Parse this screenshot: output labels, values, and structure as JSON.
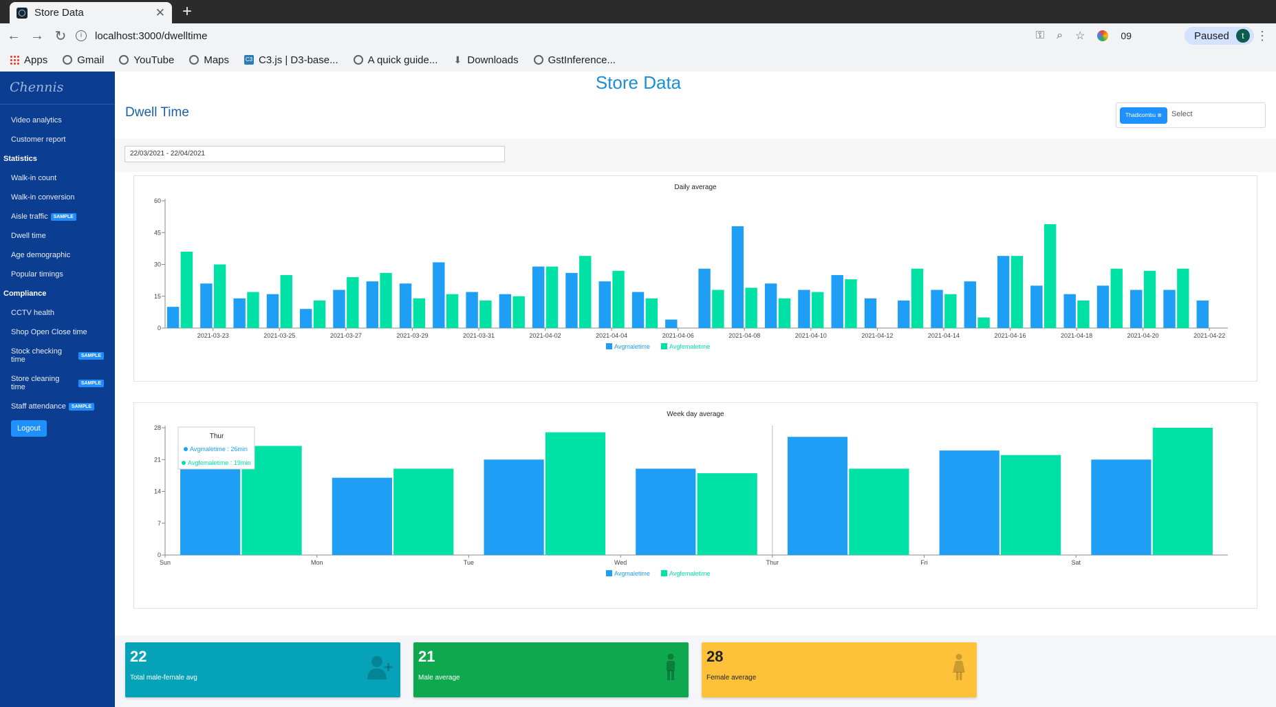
{
  "browser": {
    "tab_title": "Store Data",
    "url": "localhost:3000/dwelltime",
    "paused_label": "Paused",
    "avatar_letter": "t",
    "extension_badge": "09",
    "bookmarks": [
      "Apps",
      "Gmail",
      "YouTube",
      "Maps",
      "C3.js | D3-base...",
      "A quick guide...",
      "Downloads",
      "GstInference..."
    ]
  },
  "sidebar": {
    "logo": "Chennis",
    "top_items": [
      "Video analytics",
      "Customer report"
    ],
    "sections": [
      {
        "title": "Statistics",
        "items": [
          {
            "label": "Walk-in count",
            "badge": ""
          },
          {
            "label": "Walk-in conversion",
            "badge": ""
          },
          {
            "label": "Aisle traffic",
            "badge": "SAMPLE"
          },
          {
            "label": "Dwell time",
            "badge": ""
          },
          {
            "label": "Age demographic",
            "badge": ""
          },
          {
            "label": "Popular timings",
            "badge": ""
          }
        ]
      },
      {
        "title": "Compliance",
        "items": [
          {
            "label": "CCTV health",
            "badge": ""
          },
          {
            "label": "Shop Open Close time",
            "badge": ""
          },
          {
            "label": "Stock checking time",
            "badge": "SAMPLE"
          },
          {
            "label": "Store cleaning time",
            "badge": "SAMPLE"
          },
          {
            "label": "Staff attendance",
            "badge": "SAMPLE"
          }
        ]
      }
    ],
    "logout_label": "Logout"
  },
  "header": {
    "title": "Store Data"
  },
  "page": {
    "title": "Dwell Time",
    "store_chip": "Thadicombu ⊗",
    "select_placeholder": "Select",
    "date_range": "22/03/2021 - 22/04/2021"
  },
  "colors": {
    "male": "#1e9ef4",
    "female": "#00e2a5",
    "sidebar": "#0b3d91"
  },
  "chart_data": [
    {
      "type": "bar",
      "title": "Daily average",
      "ylim": [
        0,
        60
      ],
      "yticks": [
        0,
        15,
        30,
        45,
        60
      ],
      "x_tick_labels": [
        "2021-03-23",
        "2021-03-25",
        "2021-03-27",
        "2021-03-29",
        "2021-03-31",
        "2021-04-02",
        "2021-04-04",
        "2021-04-06",
        "2021-04-08",
        "2021-04-10",
        "2021-04-12",
        "2021-04-14",
        "2021-04-16",
        "2021-04-18",
        "2021-04-20",
        "2021-04-22"
      ],
      "categories": [
        "2021-03-22",
        "2021-03-23",
        "2021-03-24",
        "2021-03-25",
        "2021-03-26",
        "2021-03-27",
        "2021-03-28",
        "2021-03-29",
        "2021-03-30",
        "2021-03-31",
        "2021-04-01",
        "2021-04-02",
        "2021-04-03",
        "2021-04-04",
        "2021-04-05",
        "2021-04-06",
        "2021-04-07",
        "2021-04-08",
        "2021-04-09",
        "2021-04-10",
        "2021-04-11",
        "2021-04-12",
        "2021-04-13",
        "2021-04-14",
        "2021-04-15",
        "2021-04-16",
        "2021-04-17",
        "2021-04-18",
        "2021-04-19",
        "2021-04-20",
        "2021-04-21",
        "2021-04-22"
      ],
      "series": [
        {
          "name": "Avgmaletime",
          "color": "#1e9ef4",
          "values": [
            10,
            21,
            14,
            16,
            9,
            18,
            22,
            21,
            31,
            17,
            16,
            29,
            26,
            22,
            17,
            4,
            28,
            48,
            21,
            18,
            25,
            14,
            13,
            18,
            22,
            34,
            20,
            16,
            20,
            18,
            18,
            13
          ]
        },
        {
          "name": "Avgfemaletime",
          "color": "#00e2a5",
          "values": [
            36,
            30,
            17,
            25,
            13,
            24,
            26,
            14,
            16,
            13,
            15,
            29,
            34,
            27,
            14,
            0,
            18,
            19,
            14,
            17,
            23,
            0,
            28,
            16,
            5,
            34,
            49,
            13,
            28,
            27,
            28,
            0
          ]
        }
      ],
      "legend": "bottom"
    },
    {
      "type": "bar",
      "title": "Week day average",
      "ylim": [
        0,
        28
      ],
      "yticks": [
        0,
        7,
        14,
        21,
        28
      ],
      "categories": [
        "Sun",
        "Mon",
        "Tue",
        "Wed",
        "Thur",
        "Fri",
        "Sat"
      ],
      "series": [
        {
          "name": "Avgmaletime",
          "color": "#1e9ef4",
          "values": [
            19,
            17,
            21,
            19,
            26,
            23,
            21
          ]
        },
        {
          "name": "Avgfemaletime",
          "color": "#00e2a5",
          "values": [
            24,
            19,
            27,
            18,
            19,
            22,
            28
          ]
        }
      ],
      "legend": "bottom",
      "tooltip": {
        "title": "Thur",
        "lines": [
          "Avgmaletime : 26min",
          "Avgfemaletime : 19min"
        ]
      }
    }
  ],
  "stats": [
    {
      "value": "22",
      "label": "Total male-female avg",
      "color": "#06a3b8",
      "icon": "add-user-icon"
    },
    {
      "value": "21",
      "label": "Male average",
      "color": "#0ea84e",
      "icon": "male-icon"
    },
    {
      "value": "28",
      "label": "Female average",
      "color": "#fdc23a",
      "icon": "female-icon"
    }
  ]
}
